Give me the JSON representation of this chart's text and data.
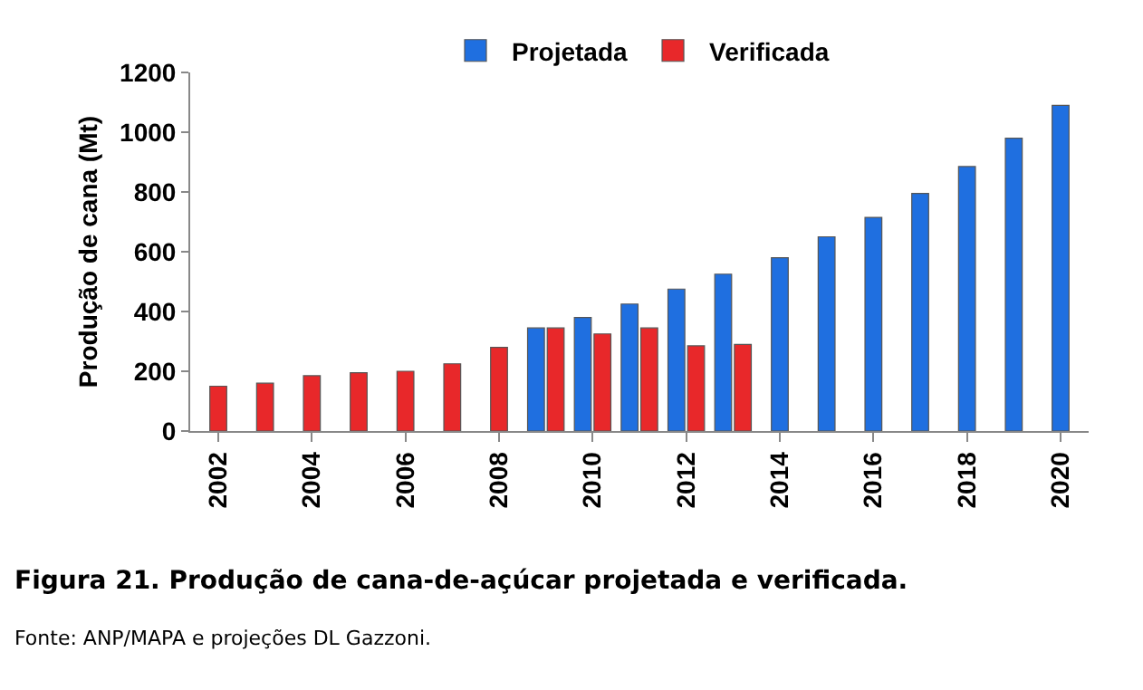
{
  "chart_data": {
    "type": "bar",
    "ylabel": "Produção de cana (Mt)",
    "categories": [
      "2002",
      null,
      "2004",
      null,
      "2006",
      null,
      "2008",
      null,
      "2010",
      null,
      "2012",
      null,
      "2014",
      null,
      "2016",
      null,
      "2018",
      null,
      "2020"
    ],
    "series": [
      {
        "name": "Projetada",
        "color": "#1f6fe0",
        "values": [
          null,
          null,
          null,
          null,
          null,
          null,
          null,
          345,
          380,
          425,
          475,
          525,
          580,
          650,
          715,
          795,
          885,
          980,
          1090
        ]
      },
      {
        "name": "Verificada",
        "color": "#e8282a",
        "values": [
          150,
          160,
          185,
          195,
          200,
          225,
          280,
          345,
          325,
          345,
          285,
          290,
          null,
          null,
          null,
          null,
          null,
          null,
          null
        ]
      }
    ],
    "ylim": [
      0,
      1200
    ],
    "yticks": [
      0,
      200,
      400,
      600,
      800,
      1000,
      1200
    ],
    "grid": false,
    "legend": "top",
    "annotations": [
      "Figura 21. Produção de cana-de-açúcar projetada e verificada.",
      "Fonte: ANP/MAPA e projeções DL Gazzoni."
    ]
  }
}
